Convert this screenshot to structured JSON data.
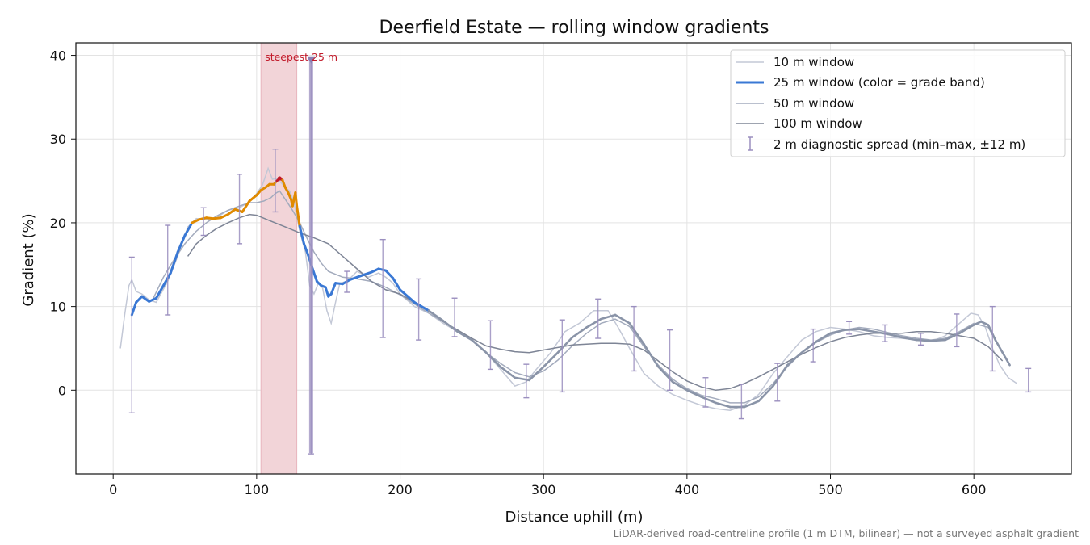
{
  "chart_data": {
    "type": "line",
    "title": "Deerfield Estate — rolling window gradients",
    "xlabel": "Distance uphill (m)",
    "ylabel": "Gradient (%)",
    "xlim": [
      -26,
      668
    ],
    "ylim": [
      -10,
      41.5
    ],
    "xticks": [
      0,
      100,
      200,
      300,
      400,
      500,
      600
    ],
    "yticks": [
      0,
      10,
      20,
      30,
      40
    ],
    "grid": true,
    "legend_position": "top-right",
    "footnote": "LiDAR-derived road-centreline profile (1 m DTM, bilinear) — not a surveyed asphalt gradient",
    "highlight": {
      "label": "steepest 25 m",
      "x_start": 103,
      "x_end": 128,
      "peak": [
        116,
        25.3
      ],
      "color": "#f2d4d8"
    },
    "spike": {
      "x": 138,
      "y_top": 39.5,
      "y_bottom": -7.5
    },
    "colors": {
      "w10": "#c3c8d6",
      "w25_default": "#8a94a8",
      "w50": "#a3abbd",
      "w100": "#7e8596",
      "spread": "#9b8fbf",
      "band_blue": "#3a78d4",
      "band_orange": "#e08a00",
      "band_red": "#c21a2a",
      "highlight_text": "#c21a2a"
    },
    "series": [
      {
        "name": "10 m window",
        "x": [
          5,
          8,
          11,
          13,
          16,
          20,
          25,
          30,
          38,
          45,
          52,
          58,
          65,
          72,
          80,
          88,
          95,
          100,
          104,
          108,
          111,
          114,
          117,
          120,
          123,
          126,
          130,
          134,
          137,
          140,
          143,
          146,
          149,
          152,
          155,
          158,
          163,
          170,
          178,
          185,
          190,
          195,
          200,
          210,
          220,
          230,
          240,
          250,
          260,
          270,
          280,
          288,
          295,
          305,
          315,
          325,
          335,
          345,
          352,
          360,
          370,
          380,
          390,
          400,
          410,
          420,
          430,
          440,
          450,
          460,
          470,
          480,
          490,
          500,
          510,
          520,
          530,
          540,
          550,
          560,
          570,
          580,
          590,
          598,
          603,
          608,
          613,
          618,
          624,
          630
        ],
        "y": [
          5,
          9,
          12.5,
          13.2,
          11.8,
          11.5,
          10.8,
          10.5,
          13,
          16,
          19.5,
          20.5,
          20.4,
          20.6,
          21.5,
          21.8,
          22.5,
          23.5,
          24.5,
          26.5,
          25.2,
          25.3,
          24.8,
          24.2,
          23.8,
          22.5,
          19,
          16.5,
          12.5,
          11.5,
          12.8,
          12.2,
          9.5,
          8,
          10.5,
          12.8,
          13,
          14.2,
          13.5,
          14,
          13.5,
          12.8,
          11.5,
          10,
          9.2,
          8,
          7,
          6,
          4.5,
          2.5,
          0.5,
          1,
          2.5,
          4.5,
          7,
          8,
          9.5,
          9.5,
          7.5,
          5,
          2,
          0.5,
          -0.5,
          -1.2,
          -1.8,
          -2.2,
          -2.4,
          -1.8,
          -0.5,
          2,
          4,
          6,
          7,
          7.5,
          7.3,
          7,
          6.5,
          6.3,
          6.2,
          6,
          5.8,
          6.5,
          8,
          9.2,
          9,
          7.5,
          5,
          3,
          1.5,
          0.8
        ]
      },
      {
        "name": "25 m window (color = grade band)",
        "x": [
          13,
          16,
          20,
          25,
          30,
          35,
          40,
          45,
          50,
          55,
          60,
          65,
          70,
          75,
          80,
          85,
          90,
          95,
          100,
          103,
          106,
          109,
          112,
          114,
          116,
          118,
          120,
          122,
          124,
          125,
          127,
          128,
          130,
          133,
          136,
          139,
          142,
          145,
          148,
          150,
          152,
          155,
          160,
          165,
          170,
          175,
          180,
          185,
          190,
          195,
          200,
          210,
          220,
          230,
          240,
          250,
          260,
          270,
          280,
          290,
          300,
          310,
          320,
          330,
          340,
          350,
          360,
          370,
          380,
          390,
          400,
          410,
          420,
          430,
          440,
          450,
          460,
          470,
          480,
          490,
          500,
          510,
          520,
          530,
          540,
          550,
          560,
          570,
          580,
          590,
          600,
          605,
          610,
          615,
          620,
          625
        ],
        "y": [
          9,
          10.5,
          11.2,
          10.6,
          11,
          12.5,
          14,
          16.5,
          18.5,
          20,
          20.4,
          20.6,
          20.5,
          20.6,
          21,
          21.6,
          21.3,
          22.6,
          23.3,
          23.9,
          24.2,
          24.6,
          24.6,
          25,
          25.3,
          25.1,
          24.2,
          23.6,
          22.8,
          22,
          23.6,
          22,
          19.6,
          17.5,
          16.1,
          14.5,
          13,
          12.5,
          12.3,
          11.2,
          11.5,
          12.8,
          12.7,
          13.2,
          13.5,
          13.8,
          14.1,
          14.5,
          14.3,
          13.4,
          12,
          10.5,
          9.5,
          8.3,
          7,
          6,
          4.5,
          2.8,
          1.5,
          1.2,
          2.8,
          4.5,
          6.3,
          7.5,
          8.5,
          9,
          8,
          5.5,
          2.8,
          1,
          0,
          -0.8,
          -1.5,
          -2,
          -2,
          -1.3,
          0.5,
          3,
          4.5,
          5.8,
          6.8,
          7.2,
          7.3,
          7,
          6.7,
          6.3,
          6,
          5.9,
          6,
          6.8,
          7.8,
          8.2,
          7.8,
          6,
          4.5,
          3
        ]
      },
      {
        "name": "50 m window",
        "x": [
          28,
          35,
          42,
          50,
          58,
          65,
          72,
          80,
          88,
          95,
          100,
          105,
          110,
          113,
          116,
          120,
          125,
          130,
          135,
          140,
          145,
          150,
          160,
          170,
          180,
          190,
          200,
          210,
          220,
          230,
          240,
          250,
          260,
          270,
          280,
          290,
          300,
          310,
          320,
          330,
          340,
          350,
          360,
          370,
          380,
          390,
          400,
          410,
          420,
          430,
          440,
          450,
          460,
          470,
          480,
          490,
          500,
          510,
          520,
          530,
          540,
          550,
          560,
          570,
          580,
          590,
          600,
          610,
          615
        ],
        "y": [
          11,
          13.5,
          15.5,
          17.5,
          19,
          20,
          20.8,
          21.5,
          22,
          22.4,
          22.4,
          22.6,
          23,
          23.5,
          23.8,
          22.8,
          21.5,
          20,
          18.2,
          16.5,
          15.2,
          14.2,
          13.5,
          13.3,
          13,
          12.3,
          11.4,
          10.3,
          9.2,
          8.2,
          7.2,
          6,
          4.5,
          3.2,
          2.1,
          1.6,
          2.3,
          3.6,
          5.3,
          6.8,
          8,
          8.5,
          7.6,
          5.2,
          3,
          1.3,
          0.2,
          -0.6,
          -1,
          -1.5,
          -1.5,
          -0.8,
          0.8,
          2.8,
          4.5,
          5.7,
          6.6,
          7.2,
          7.5,
          7.3,
          6.9,
          6.5,
          6.2,
          6,
          6.2,
          7,
          8,
          7.5,
          6
        ]
      },
      {
        "name": "100 m window",
        "x": [
          52,
          58,
          65,
          72,
          80,
          88,
          95,
          100,
          110,
          120,
          130,
          140,
          150,
          160,
          170,
          180,
          190,
          200,
          210,
          220,
          230,
          240,
          250,
          260,
          270,
          280,
          290,
          300,
          310,
          320,
          330,
          340,
          350,
          360,
          370,
          380,
          390,
          400,
          410,
          420,
          430,
          440,
          450,
          460,
          470,
          480,
          490,
          500,
          510,
          520,
          530,
          540,
          550,
          560,
          570,
          580,
          590,
          600,
          610,
          620
        ],
        "y": [
          16,
          17.5,
          18.5,
          19.3,
          20,
          20.6,
          21,
          20.9,
          20.2,
          19.5,
          18.8,
          18.2,
          17.5,
          16,
          14.5,
          13,
          12,
          11.5,
          10.5,
          9.5,
          8.2,
          7.2,
          6.2,
          5.3,
          4.9,
          4.6,
          4.5,
          4.8,
          5.1,
          5.4,
          5.5,
          5.6,
          5.6,
          5.5,
          4.8,
          3.5,
          2.2,
          1.1,
          0.4,
          0,
          0.2,
          0.8,
          1.6,
          2.5,
          3.4,
          4.3,
          5.1,
          5.8,
          6.3,
          6.6,
          6.8,
          6.8,
          6.8,
          7,
          7,
          6.8,
          6.5,
          6.2,
          5.2,
          3.5
        ]
      },
      {
        "name": "2 m diagnostic spread (min–max, ±12 m)",
        "x": [
          13,
          38,
          63,
          88,
          113,
          138,
          163,
          188,
          213,
          238,
          263,
          288,
          313,
          338,
          363,
          388,
          413,
          438,
          463,
          488,
          513,
          538,
          563,
          588,
          613,
          638
        ],
        "low": [
          -2.7,
          9,
          18.5,
          17.5,
          21.3,
          -7.6,
          11.7,
          6.3,
          6,
          6.4,
          2.5,
          -0.9,
          -0.2,
          6.2,
          2.3,
          0,
          -2,
          -3.4,
          -1.3,
          3.4,
          6.7,
          5.8,
          5.4,
          5.2,
          2.3,
          -0.2
        ],
        "high": [
          15.9,
          19.7,
          21.8,
          25.8,
          28.8,
          39.5,
          14.2,
          18,
          13.3,
          11,
          8.3,
          3.1,
          8.4,
          10.9,
          10,
          7.2,
          1.5,
          0.7,
          3.2,
          7.3,
          8.2,
          7.8,
          6.8,
          9.1,
          10,
          2.6
        ]
      }
    ]
  }
}
